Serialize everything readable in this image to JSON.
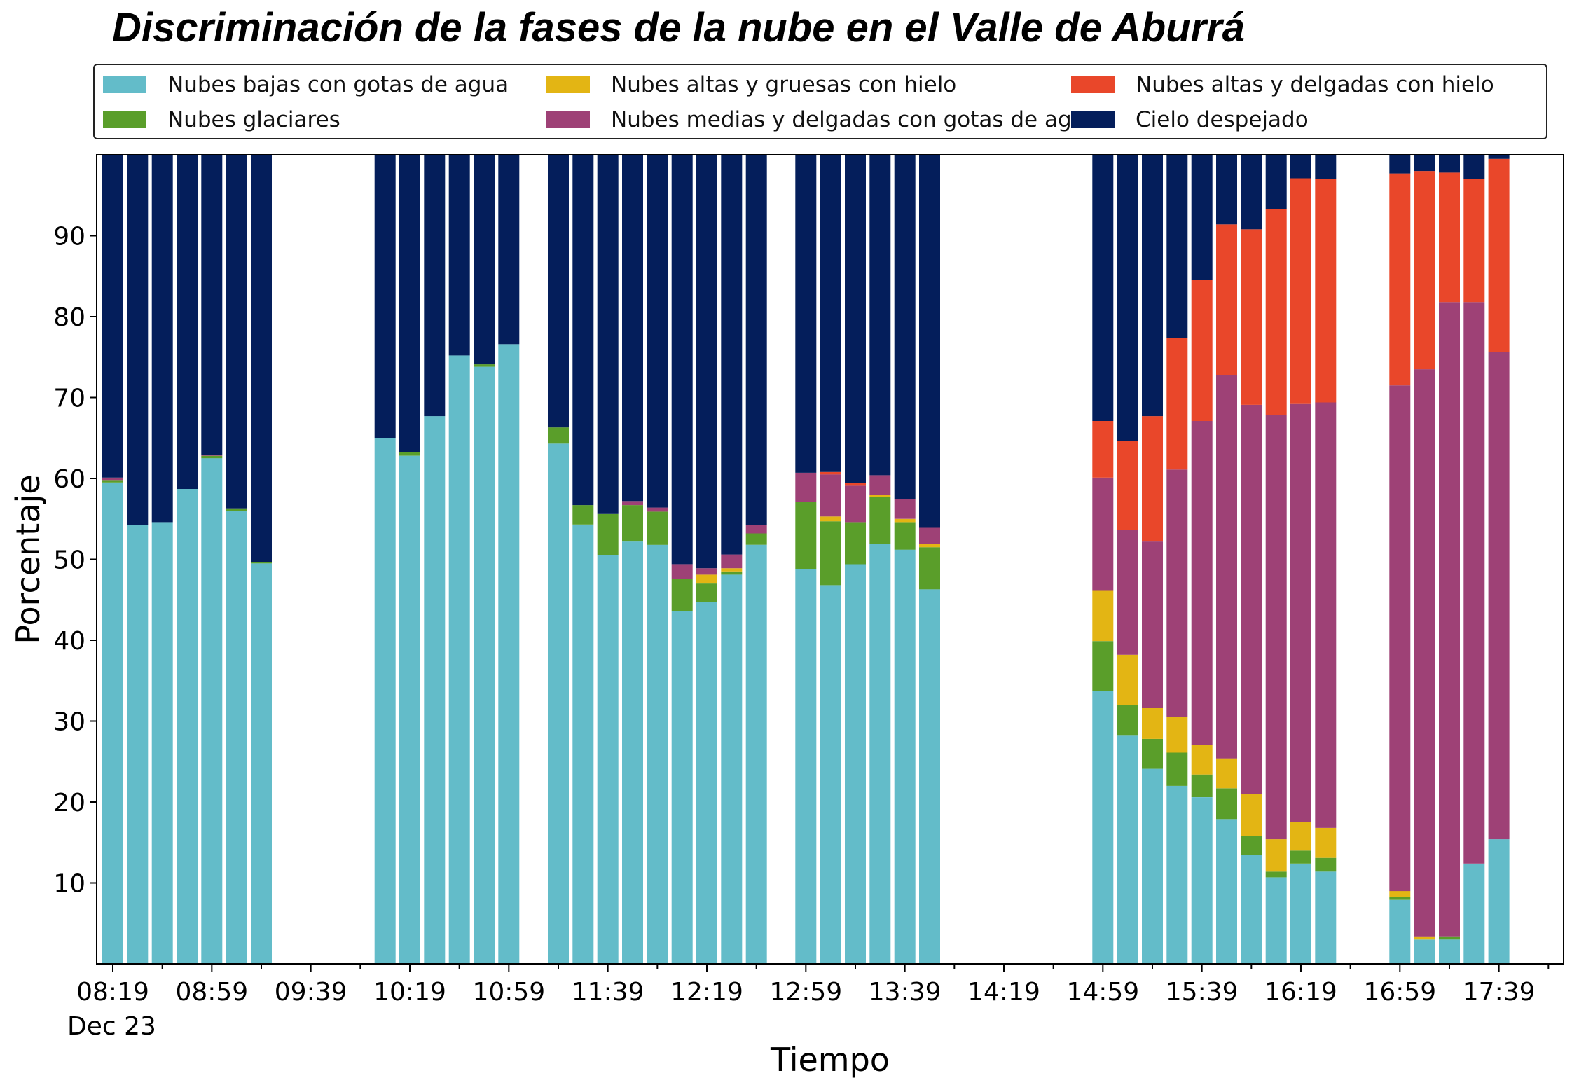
{
  "chart_data": {
    "type": "bar",
    "stacked": true,
    "title": "Discriminación de la fases de la nube en el Valle de Aburrá",
    "xlabel": "Tiempo",
    "ylabel": "Porcentaje",
    "ylim": [
      0,
      100
    ],
    "yticks": [
      10,
      20,
      30,
      40,
      50,
      60,
      70,
      80,
      90
    ],
    "grid": false,
    "legend_position": "top",
    "x_tick_labels": [
      "08:19",
      "08:59",
      "09:39",
      "10:19",
      "10:59",
      "11:39",
      "12:19",
      "12:59",
      "13:39",
      "14:19",
      "14:59",
      "15:39",
      "16:19",
      "16:59",
      "17:39"
    ],
    "x_date_label": "Dec 23",
    "series_names": [
      "Nubes bajas con gotas de agua",
      "Nubes glaciares",
      "Nubes altas y gruesas con hielo",
      "Nubes medias y delgadas con gotas de agua",
      "Nubes altas y delgadas con hielo",
      "Cielo despejado"
    ],
    "series_colors": [
      "#63bcc9",
      "#5a9e2a",
      "#e3b514",
      "#9e4176",
      "#e9472a",
      "#041e5b"
    ],
    "bars": [
      {
        "t": "08:19",
        "values": [
          59.5,
          0.3,
          0.0,
          0.3,
          0.0,
          39.9
        ]
      },
      {
        "t": "08:29",
        "values": [
          54.2,
          0.0,
          0.0,
          0.0,
          0.0,
          45.8
        ]
      },
      {
        "t": "08:39",
        "values": [
          54.6,
          0.0,
          0.0,
          0.0,
          0.0,
          45.4
        ]
      },
      {
        "t": "08:49",
        "values": [
          58.7,
          0.0,
          0.0,
          0.0,
          0.0,
          41.3
        ]
      },
      {
        "t": "08:59",
        "values": [
          62.5,
          0.3,
          0.0,
          0.1,
          0.0,
          37.1
        ]
      },
      {
        "t": "09:09",
        "values": [
          56.0,
          0.3,
          0.0,
          0.0,
          0.0,
          43.7
        ]
      },
      {
        "t": "09:19",
        "values": [
          49.5,
          0.2,
          0.0,
          0.0,
          0.0,
          50.3
        ]
      },
      {
        "t": "10:09",
        "values": [
          65.0,
          0.0,
          0.0,
          0.0,
          0.0,
          35.0
        ]
      },
      {
        "t": "10:19",
        "values": [
          62.8,
          0.4,
          0.0,
          0.0,
          0.0,
          36.8
        ]
      },
      {
        "t": "10:29",
        "values": [
          67.7,
          0.0,
          0.0,
          0.0,
          0.0,
          32.3
        ]
      },
      {
        "t": "10:39",
        "values": [
          75.2,
          0.0,
          0.0,
          0.0,
          0.0,
          24.8
        ]
      },
      {
        "t": "10:49",
        "values": [
          73.8,
          0.3,
          0.0,
          0.0,
          0.0,
          25.9
        ]
      },
      {
        "t": "10:59",
        "values": [
          76.6,
          0.0,
          0.0,
          0.0,
          0.0,
          23.4
        ]
      },
      {
        "t": "11:19",
        "values": [
          64.3,
          2.0,
          0.0,
          0.0,
          0.0,
          33.7
        ]
      },
      {
        "t": "11:29",
        "values": [
          54.3,
          2.4,
          0.0,
          0.0,
          0.0,
          43.3
        ]
      },
      {
        "t": "11:39",
        "values": [
          50.5,
          5.1,
          0.0,
          0.0,
          0.0,
          44.4
        ]
      },
      {
        "t": "11:49",
        "values": [
          52.2,
          4.5,
          0.0,
          0.5,
          0.0,
          42.8
        ]
      },
      {
        "t": "11:59",
        "values": [
          51.8,
          4.1,
          0.0,
          0.5,
          0.0,
          43.6
        ]
      },
      {
        "t": "12:09",
        "values": [
          43.6,
          4.0,
          0.0,
          1.8,
          0.0,
          50.6
        ]
      },
      {
        "t": "12:19",
        "values": [
          44.7,
          2.3,
          1.1,
          0.8,
          0.0,
          51.1
        ]
      },
      {
        "t": "12:29",
        "values": [
          48.1,
          0.4,
          0.4,
          1.7,
          0.0,
          49.4
        ]
      },
      {
        "t": "12:39",
        "values": [
          51.8,
          1.4,
          0.0,
          1.0,
          0.0,
          45.8
        ]
      },
      {
        "t": "12:59",
        "values": [
          48.8,
          8.3,
          0.0,
          3.6,
          0.0,
          39.3
        ]
      },
      {
        "t": "13:09",
        "values": [
          46.8,
          7.9,
          0.6,
          5.2,
          0.3,
          39.2
        ]
      },
      {
        "t": "13:19",
        "values": [
          49.4,
          5.2,
          0.0,
          4.5,
          0.3,
          40.6
        ]
      },
      {
        "t": "13:29",
        "values": [
          51.9,
          5.8,
          0.3,
          2.4,
          0.0,
          39.6
        ]
      },
      {
        "t": "13:39",
        "values": [
          51.2,
          3.4,
          0.4,
          2.4,
          0.0,
          42.6
        ]
      },
      {
        "t": "13:49",
        "values": [
          46.3,
          5.2,
          0.4,
          2.0,
          0.0,
          46.1
        ]
      },
      {
        "t": "14:59",
        "values": [
          33.7,
          6.2,
          6.2,
          14.0,
          7.0,
          32.9
        ]
      },
      {
        "t": "15:09",
        "values": [
          28.2,
          3.8,
          6.2,
          15.4,
          11.0,
          35.4
        ]
      },
      {
        "t": "15:19",
        "values": [
          24.1,
          3.7,
          3.8,
          20.6,
          15.5,
          32.3
        ]
      },
      {
        "t": "15:29",
        "values": [
          22.0,
          4.1,
          4.4,
          30.6,
          16.3,
          22.6
        ]
      },
      {
        "t": "15:39",
        "values": [
          20.6,
          2.8,
          3.7,
          40.0,
          17.4,
          15.5
        ]
      },
      {
        "t": "15:49",
        "values": [
          17.9,
          3.8,
          3.7,
          47.4,
          18.6,
          8.6
        ]
      },
      {
        "t": "15:59",
        "values": [
          13.5,
          2.3,
          5.2,
          48.1,
          21.7,
          9.2
        ]
      },
      {
        "t": "16:09",
        "values": [
          10.7,
          0.7,
          4.0,
          52.4,
          25.5,
          6.7
        ]
      },
      {
        "t": "16:19",
        "values": [
          12.4,
          1.6,
          3.5,
          51.7,
          27.9,
          2.9
        ]
      },
      {
        "t": "16:29",
        "values": [
          11.4,
          1.7,
          3.7,
          52.6,
          27.6,
          3.0
        ]
      },
      {
        "t": "16:59",
        "values": [
          7.9,
          0.4,
          0.7,
          62.5,
          26.2,
          2.3
        ]
      },
      {
        "t": "17:09",
        "values": [
          3.0,
          0.0,
          0.4,
          70.1,
          24.5,
          2.0
        ]
      },
      {
        "t": "17:19",
        "values": [
          3.0,
          0.4,
          0.0,
          78.4,
          16.0,
          2.2
        ]
      },
      {
        "t": "17:29",
        "values": [
          12.4,
          0.0,
          0.0,
          69.4,
          15.2,
          3.0
        ]
      },
      {
        "t": "17:39",
        "values": [
          15.4,
          0.0,
          0.0,
          60.2,
          23.9,
          0.5
        ]
      }
    ]
  }
}
